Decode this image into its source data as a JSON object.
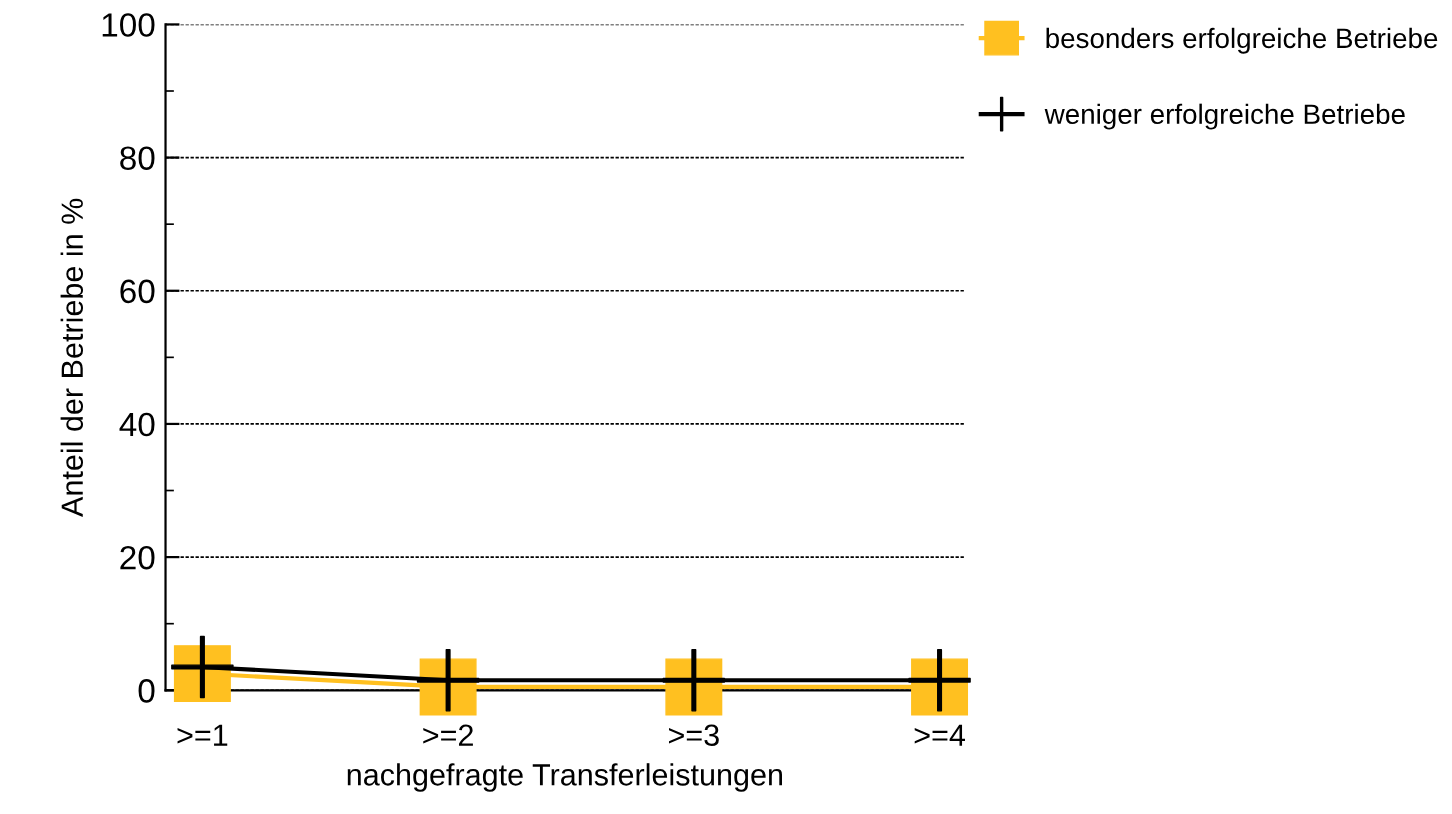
{
  "chart_data": {
    "type": "line",
    "xlabel": "nachgefragte Transferleistungen",
    "ylabel": "Anteil der Betriebe in %",
    "categories": [
      ">=1",
      ">=2",
      ">=3",
      ">=4"
    ],
    "series": [
      {
        "name": "besonders erfolgreiche Betriebe",
        "color": "#ffc020",
        "marker": "square",
        "values": [
          2.5,
          0.5,
          0.5,
          0.5
        ]
      },
      {
        "name": "weniger erfolgreiche Betriebe",
        "color": "#000000",
        "marker": "cross",
        "values": [
          3.5,
          1.5,
          1.5,
          1.5
        ]
      }
    ],
    "ylim": [
      0,
      100
    ],
    "yticks": [
      0,
      20,
      40,
      60,
      80,
      100
    ],
    "grid": "y",
    "legend": "right",
    "line_style": "solid"
  }
}
